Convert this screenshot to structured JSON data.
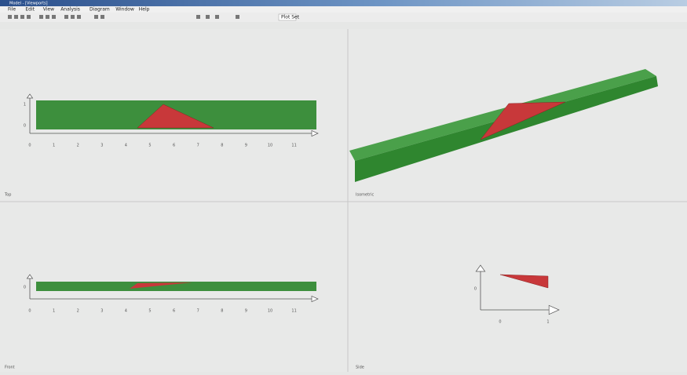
{
  "window": {
    "title": "Model - [Viewports]",
    "menu": [
      "File",
      "Edit",
      "View",
      "Analysis",
      "Diagram",
      "Window",
      "Help"
    ],
    "toolbar_field": "Plot Set"
  },
  "viewports": [
    {
      "label": "Top",
      "y_axis_labels": [
        "1",
        "0"
      ],
      "x_axis_labels": [
        "0",
        "1",
        "2",
        "3",
        "4",
        "5",
        "6",
        "7",
        "8",
        "9",
        "10",
        "11"
      ]
    },
    {
      "label": "Isometric"
    },
    {
      "label": "Front",
      "y_axis_labels": [
        "0"
      ],
      "x_axis_labels": [
        "0",
        "1",
        "2",
        "3",
        "4",
        "5",
        "6",
        "7",
        "8",
        "9",
        "10",
        "11"
      ]
    },
    {
      "label": "Side",
      "y_axis_labels": [
        "0"
      ],
      "x_axis_labels": [
        "0",
        "1"
      ]
    }
  ]
}
